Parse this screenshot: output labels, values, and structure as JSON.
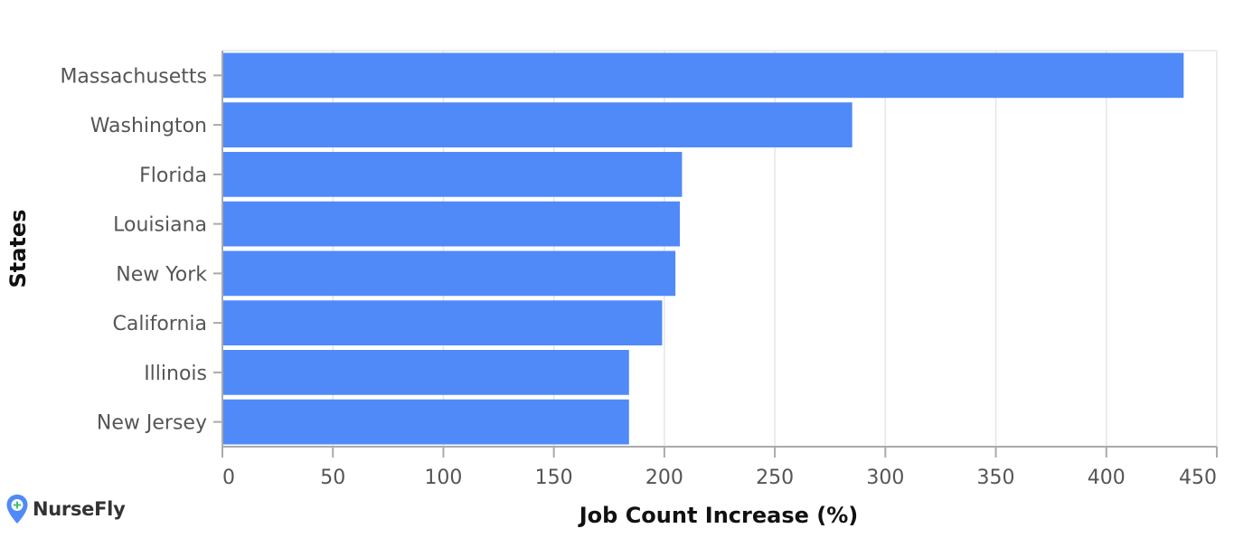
{
  "chart_data": {
    "type": "bar",
    "orientation": "horizontal",
    "categories": [
      "Massachusetts",
      "Washington",
      "Florida",
      "Louisiana",
      "New York",
      "California",
      "Illinois",
      "New Jersey"
    ],
    "values": [
      435,
      285,
      208,
      207,
      205,
      199,
      184,
      184
    ],
    "xlabel": "Job Count Increase (%)",
    "ylabel": "States",
    "xlim": [
      0,
      450
    ],
    "xticks": [
      0,
      50,
      100,
      150,
      200,
      250,
      300,
      350,
      400,
      450
    ],
    "grid": true,
    "bar_color": "#4f8af8"
  },
  "brand": {
    "name": "NurseFly",
    "icon": "map-pin-plus-icon",
    "color": "#4f8af8"
  }
}
